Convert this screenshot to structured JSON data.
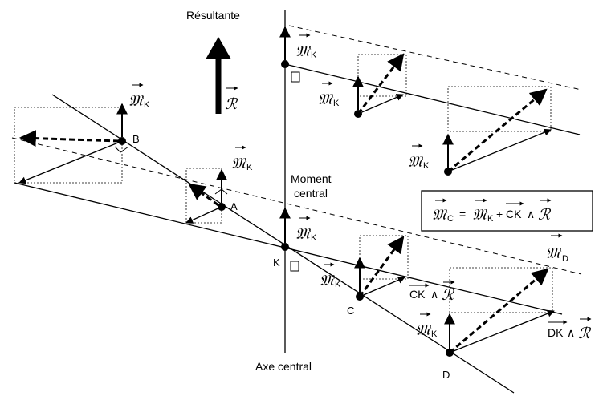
{
  "labels": {
    "resultante": "Résultante",
    "moment_central_1": "Moment",
    "moment_central_2": "central",
    "axe_central": "Axe central",
    "point_k": "K",
    "point_a": "A",
    "point_b": "B",
    "point_c": "C",
    "point_d": "D"
  },
  "symbols": {
    "moment_m": "𝔐",
    "resultant_r": "ℛ",
    "sub_k": "K",
    "sub_d": "D",
    "sub_c": "C",
    "ck": "CK",
    "dk": "DK",
    "wedge": "∧"
  },
  "formula": {
    "lhs_sub": "C",
    "eq": "=",
    "plus": "+",
    "rhs_sub": "K",
    "ck": "CK",
    "wedge": "∧"
  }
}
